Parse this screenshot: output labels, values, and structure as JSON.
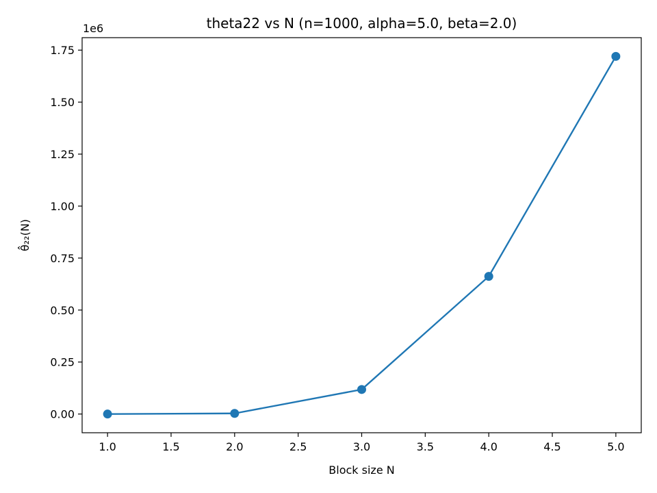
{
  "chart_data": {
    "type": "line",
    "title": "theta22 vs N  (n=1000, alpha=5.0, beta=2.0)",
    "xlabel": "Block size N",
    "ylabel": "θ̂₂₂(N)",
    "y_offset_label": "1e6",
    "x": [
      1.0,
      2.0,
      3.0,
      4.0,
      5.0
    ],
    "series": [
      {
        "values": [
          0,
          3000,
          118000,
          662000,
          1720000
        ]
      }
    ],
    "xlim": [
      0.8,
      5.2
    ],
    "ylim": [
      -90000,
      1810000
    ],
    "x_ticks": [
      {
        "value": 1.0,
        "label": "1.0"
      },
      {
        "value": 1.5,
        "label": "1.5"
      },
      {
        "value": 2.0,
        "label": "2.0"
      },
      {
        "value": 2.5,
        "label": "2.5"
      },
      {
        "value": 3.0,
        "label": "3.0"
      },
      {
        "value": 3.5,
        "label": "3.5"
      },
      {
        "value": 4.0,
        "label": "4.0"
      },
      {
        "value": 4.5,
        "label": "4.5"
      },
      {
        "value": 5.0,
        "label": "5.0"
      }
    ],
    "y_ticks": [
      {
        "value": 0,
        "label": "0.00"
      },
      {
        "value": 250000,
        "label": "0.25"
      },
      {
        "value": 500000,
        "label": "0.50"
      },
      {
        "value": 750000,
        "label": "0.75"
      },
      {
        "value": 1000000,
        "label": "1.00"
      },
      {
        "value": 1250000,
        "label": "1.25"
      },
      {
        "value": 1500000,
        "label": "1.50"
      },
      {
        "value": 1750000,
        "label": "1.75"
      }
    ],
    "grid": false,
    "legend": "none",
    "line_color": "#1f77b4",
    "marker": "circle"
  }
}
